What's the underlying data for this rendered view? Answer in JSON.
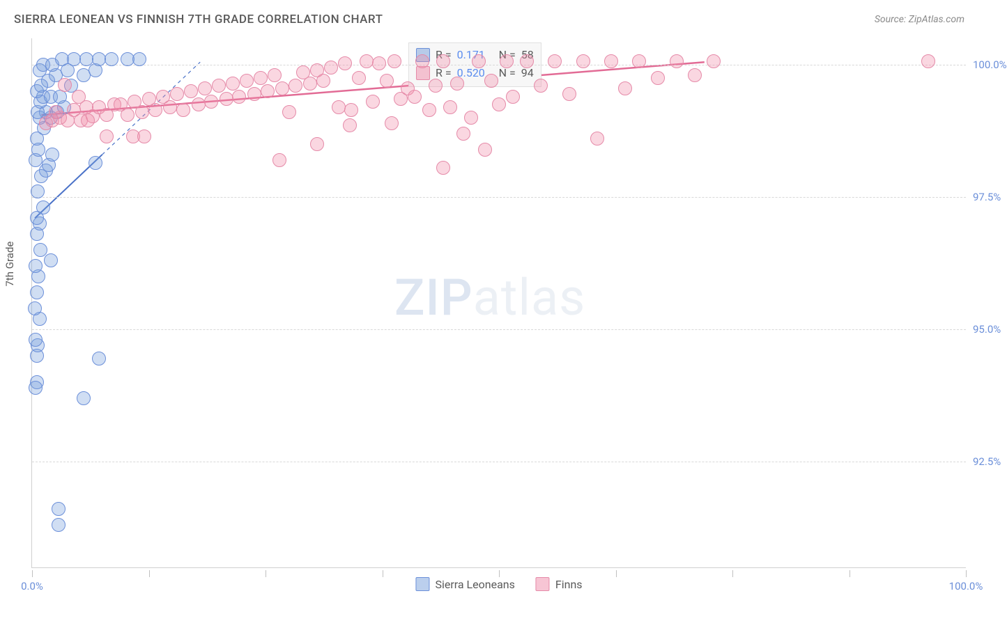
{
  "title": "SIERRA LEONEAN VS FINNISH 7TH GRADE CORRELATION CHART",
  "source": "Source: ZipAtlas.com",
  "ylabel": "7th Grade",
  "watermark": {
    "bold": "ZIP",
    "light": "atlas"
  },
  "chart": {
    "type": "scatter",
    "xlim": [
      0,
      100
    ],
    "ylim": [
      90.5,
      100.5
    ],
    "xtick_positions": [
      0,
      12.5,
      25,
      37.5,
      50,
      62.5,
      75,
      87.5,
      100
    ],
    "xtick_labels": {
      "0": "0.0%",
      "100": "100.0%"
    },
    "ytick_positions": [
      92.5,
      95.0,
      97.5,
      100.0
    ],
    "ytick_labels": [
      "92.5%",
      "95.0%",
      "97.5%",
      "100.0%"
    ],
    "background_color": "#ffffff",
    "grid_color": "#d8d8d8",
    "axis_color": "#d0d0d0",
    "tick_label_color": "#6b8fd9",
    "tick_fontsize": 15,
    "title_color": "#5a5a5a",
    "title_fontsize": 17,
    "marker_size": 18,
    "marker_opacity": 0.35,
    "series": [
      {
        "name": "Sierra Leoneans",
        "color_fill": "rgba(120,160,220,0.35)",
        "color_stroke": "#6b8fd9",
        "R": "0.171",
        "N": "58",
        "trend": {
          "x1": 0.3,
          "y1": 97.1,
          "x2": 7.5,
          "y2": 98.3,
          "dash_ext_x": 18,
          "dash_ext_y": 100.05,
          "color": "#4a72c8",
          "width": 2
        },
        "points": [
          [
            0.5,
            94.0
          ],
          [
            0.5,
            94.5
          ],
          [
            0.6,
            94.7
          ],
          [
            0.8,
            95.2
          ],
          [
            0.5,
            95.7
          ],
          [
            0.7,
            96.0
          ],
          [
            0.4,
            96.2
          ],
          [
            0.9,
            96.5
          ],
          [
            0.5,
            96.8
          ],
          [
            0.8,
            97.0
          ],
          [
            1.2,
            97.3
          ],
          [
            0.6,
            97.6
          ],
          [
            1.0,
            97.9
          ],
          [
            1.5,
            98.0
          ],
          [
            0.4,
            98.2
          ],
          [
            1.8,
            98.1
          ],
          [
            0.7,
            98.4
          ],
          [
            2.2,
            98.3
          ],
          [
            0.5,
            98.6
          ],
          [
            1.3,
            98.8
          ],
          [
            2.0,
            99.0
          ],
          [
            0.8,
            99.0
          ],
          [
            1.5,
            99.1
          ],
          [
            2.7,
            99.1
          ],
          [
            0.6,
            99.1
          ],
          [
            3.4,
            99.2
          ],
          [
            0.9,
            99.3
          ],
          [
            1.2,
            99.4
          ],
          [
            2.0,
            99.4
          ],
          [
            0.5,
            99.5
          ],
          [
            3.0,
            99.4
          ],
          [
            4.2,
            99.6
          ],
          [
            1.7,
            99.7
          ],
          [
            2.5,
            99.8
          ],
          [
            5.5,
            99.8
          ],
          [
            0.8,
            99.9
          ],
          [
            3.8,
            99.9
          ],
          [
            6.8,
            99.9
          ],
          [
            1.2,
            100.0
          ],
          [
            2.2,
            100.0
          ],
          [
            3.2,
            100.1
          ],
          [
            4.5,
            100.1
          ],
          [
            5.8,
            100.1
          ],
          [
            7.2,
            100.1
          ],
          [
            8.5,
            100.1
          ],
          [
            10.2,
            100.1
          ],
          [
            11.5,
            100.1
          ],
          [
            2.8,
            91.6
          ],
          [
            2.8,
            91.3
          ],
          [
            7.2,
            94.45
          ],
          [
            5.5,
            93.7
          ],
          [
            6.8,
            98.15
          ],
          [
            0.4,
            93.9
          ],
          [
            0.4,
            94.8
          ],
          [
            0.3,
            95.4
          ],
          [
            2.0,
            96.3
          ],
          [
            0.5,
            97.1
          ],
          [
            1.0,
            99.6
          ]
        ]
      },
      {
        "name": "Finns",
        "color_fill": "rgba(240,140,170,0.35)",
        "color_stroke": "#e58aa8",
        "R": "0.520",
        "N": "94",
        "trend": {
          "x1": 1,
          "y1": 99.05,
          "x2": 72,
          "y2": 100.05,
          "color": "#e26b95",
          "width": 2.5
        },
        "points": [
          [
            1.5,
            98.9
          ],
          [
            2.2,
            98.95
          ],
          [
            3.0,
            99.0
          ],
          [
            2.5,
            99.1
          ],
          [
            3.8,
            98.95
          ],
          [
            4.5,
            99.15
          ],
          [
            5.2,
            98.95
          ],
          [
            5.8,
            99.2
          ],
          [
            6.5,
            99.02
          ],
          [
            7.2,
            99.2
          ],
          [
            8.0,
            99.05
          ],
          [
            8.8,
            99.25
          ],
          [
            9.5,
            99.25
          ],
          [
            10.2,
            99.05
          ],
          [
            11.0,
            99.3
          ],
          [
            11.8,
            99.1
          ],
          [
            12.5,
            99.35
          ],
          [
            13.2,
            99.15
          ],
          [
            14.0,
            99.4
          ],
          [
            14.8,
            99.2
          ],
          [
            15.5,
            99.45
          ],
          [
            16.2,
            99.15
          ],
          [
            17.0,
            99.5
          ],
          [
            17.8,
            99.25
          ],
          [
            18.5,
            99.55
          ],
          [
            19.2,
            99.3
          ],
          [
            20.0,
            99.6
          ],
          [
            20.8,
            99.35
          ],
          [
            21.5,
            99.65
          ],
          [
            22.2,
            99.4
          ],
          [
            23.0,
            99.7
          ],
          [
            23.8,
            99.45
          ],
          [
            24.5,
            99.75
          ],
          [
            25.2,
            99.5
          ],
          [
            26.0,
            99.8
          ],
          [
            26.8,
            99.55
          ],
          [
            27.5,
            99.1
          ],
          [
            28.2,
            99.6
          ],
          [
            29.0,
            99.85
          ],
          [
            29.8,
            99.65
          ],
          [
            30.5,
            99.9
          ],
          [
            31.2,
            99.7
          ],
          [
            32.0,
            99.95
          ],
          [
            32.8,
            99.2
          ],
          [
            33.5,
            100.02
          ],
          [
            34.2,
            99.15
          ],
          [
            35.0,
            99.75
          ],
          [
            35.8,
            100.06
          ],
          [
            36.5,
            99.3
          ],
          [
            37.2,
            100.02
          ],
          [
            38.0,
            99.7
          ],
          [
            38.8,
            100.06
          ],
          [
            39.5,
            99.35
          ],
          [
            40.2,
            99.55
          ],
          [
            41.0,
            99.4
          ],
          [
            41.8,
            100.06
          ],
          [
            42.5,
            99.15
          ],
          [
            43.2,
            99.6
          ],
          [
            44.0,
            100.06
          ],
          [
            44.8,
            99.2
          ],
          [
            45.5,
            99.65
          ],
          [
            46.2,
            98.7
          ],
          [
            47.0,
            99.0
          ],
          [
            47.8,
            100.06
          ],
          [
            48.5,
            98.4
          ],
          [
            49.2,
            99.7
          ],
          [
            50.0,
            99.25
          ],
          [
            50.8,
            100.06
          ],
          [
            51.5,
            99.4
          ],
          [
            53.0,
            100.06
          ],
          [
            54.5,
            99.6
          ],
          [
            56.0,
            100.06
          ],
          [
            57.5,
            99.45
          ],
          [
            59.0,
            100.06
          ],
          [
            60.5,
            98.6
          ],
          [
            62.0,
            100.06
          ],
          [
            63.5,
            99.55
          ],
          [
            65.0,
            100.06
          ],
          [
            67.0,
            99.75
          ],
          [
            69.0,
            100.06
          ],
          [
            71.0,
            99.8
          ],
          [
            73.0,
            100.06
          ],
          [
            96.0,
            100.06
          ],
          [
            10.8,
            98.65
          ],
          [
            12.0,
            98.65
          ],
          [
            34.0,
            98.85
          ],
          [
            30.5,
            98.5
          ],
          [
            26.5,
            98.2
          ],
          [
            8.0,
            98.65
          ],
          [
            5.0,
            99.4
          ],
          [
            3.5,
            99.62
          ],
          [
            44.0,
            98.05
          ],
          [
            6.0,
            98.95
          ],
          [
            38.5,
            98.9
          ]
        ]
      }
    ]
  },
  "stat_box": {
    "rows": [
      {
        "sw": 1,
        "R_label": "R =",
        "R": "0.171",
        "N_label": "N =",
        "N": "58"
      },
      {
        "sw": 2,
        "R_label": "R =",
        "R": "0.520",
        "N_label": "N =",
        "N": "94"
      }
    ]
  },
  "bottom_legend": [
    {
      "sw": 1,
      "label": "Sierra Leoneans"
    },
    {
      "sw": 2,
      "label": "Finns"
    }
  ]
}
